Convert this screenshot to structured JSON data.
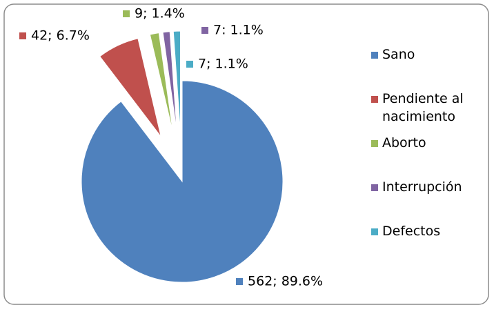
{
  "chart_data": {
    "type": "pie",
    "categories": [
      "Sano",
      "Pendiente al nacimiento",
      "Aborto",
      "Interrupción",
      "Defectos"
    ],
    "values": [
      562,
      42,
      9,
      7,
      7
    ],
    "value_labels": [
      "562; 89.6%",
      "42; 6.7%",
      "9; 1.4%",
      "7: 1.1%",
      "7; 1.1%"
    ],
    "colors": [
      "#4f81bd",
      "#c0504d",
      "#9bbb59",
      "#8064a2",
      "#4bacc6"
    ],
    "legend": "right"
  }
}
